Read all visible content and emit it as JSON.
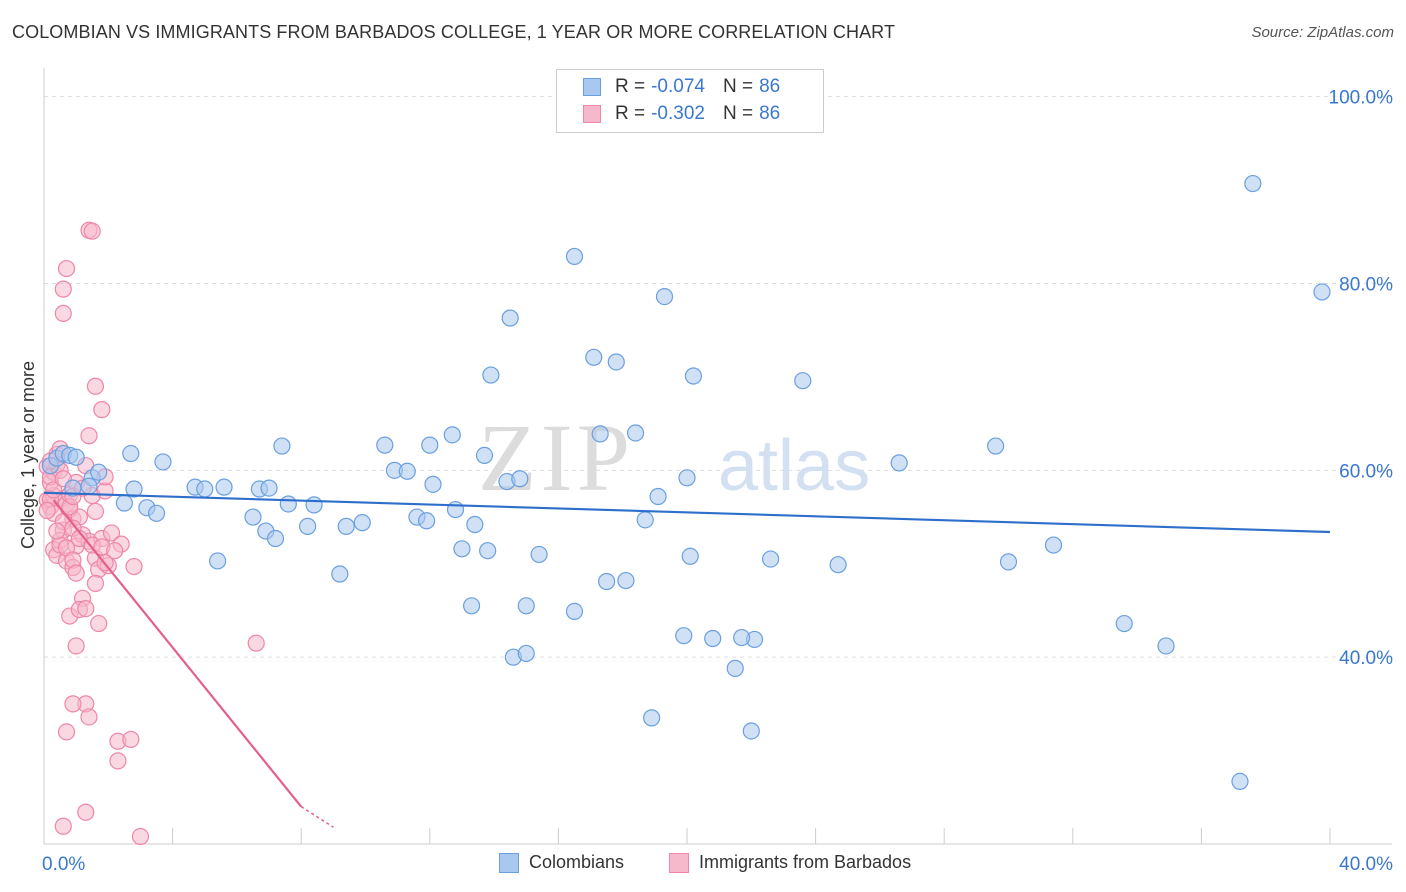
{
  "title": "COLOMBIAN VS IMMIGRANTS FROM BARBADOS COLLEGE, 1 YEAR OR MORE CORRELATION CHART",
  "source": "Source: ZipAtlas.com",
  "watermark": {
    "zip": "ZIP",
    "atlas": "atlas"
  },
  "legend": {
    "rows": [
      {
        "r_label": "R =",
        "r_value": "-0.074",
        "n_label": "N =",
        "n_value": "86"
      },
      {
        "r_label": "R =",
        "r_value": "-0.302",
        "n_label": "N =",
        "n_value": "86"
      }
    ]
  },
  "colors": {
    "blue_fill": "#a9c8ef",
    "blue_stroke": "#6a9fe0",
    "blue_line": "#2f6fcc",
    "pink_fill": "#f6b8cb",
    "pink_stroke": "#ef86a8",
    "pink_line": "#e45f8e",
    "axis_text": "#3a78d0",
    "grid": "#dddddd"
  },
  "chart_data": {
    "type": "scatter",
    "title": "COLOMBIAN VS IMMIGRANTS FROM BARBADOS COLLEGE, 1 YEAR OR MORE CORRELATION CHART",
    "xlabel": "",
    "ylabel": "College, 1 year or more",
    "xlim": [
      0,
      40
    ],
    "ylim": [
      20,
      102
    ],
    "x_tick_labels": [
      "0.0%",
      "40.0%"
    ],
    "y_tick_values": [
      40,
      60,
      80,
      100
    ],
    "y_tick_labels": [
      "40.0%",
      "60.0%",
      "80.0%",
      "100.0%"
    ],
    "series": [
      {
        "name": "Colombians",
        "r": -0.074,
        "n": 86,
        "trend": {
          "x0": 0,
          "y0": 57.6,
          "x1": 40,
          "y1": 53.4
        },
        "points": [
          [
            0.2,
            60.5
          ],
          [
            0.4,
            61.3
          ],
          [
            0.6,
            61.8
          ],
          [
            0.8,
            61.6
          ],
          [
            1.0,
            61.4
          ],
          [
            1.5,
            59.2
          ],
          [
            0.9,
            58.1
          ],
          [
            1.4,
            58.3
          ],
          [
            1.7,
            59.8
          ],
          [
            2.7,
            61.8
          ],
          [
            2.8,
            58.0
          ],
          [
            3.7,
            60.9
          ],
          [
            2.5,
            56.5
          ],
          [
            3.2,
            56.0
          ],
          [
            3.5,
            55.4
          ],
          [
            4.7,
            58.2
          ],
          [
            5.0,
            58.0
          ],
          [
            5.6,
            58.2
          ],
          [
            6.7,
            58.0
          ],
          [
            7.0,
            58.1
          ],
          [
            7.4,
            62.6
          ],
          [
            7.6,
            56.4
          ],
          [
            8.4,
            56.3
          ],
          [
            6.5,
            55.0
          ],
          [
            6.9,
            53.5
          ],
          [
            7.2,
            52.7
          ],
          [
            8.2,
            54.0
          ],
          [
            9.4,
            54.0
          ],
          [
            9.9,
            54.4
          ],
          [
            10.9,
            60.0
          ],
          [
            11.3,
            59.9
          ],
          [
            12.1,
            58.5
          ],
          [
            10.6,
            62.7
          ],
          [
            12.0,
            62.7
          ],
          [
            12.7,
            63.8
          ],
          [
            13.7,
            61.6
          ],
          [
            14.4,
            58.8
          ],
          [
            14.8,
            59.1
          ],
          [
            11.6,
            55.0
          ],
          [
            11.9,
            54.6
          ],
          [
            12.8,
            55.8
          ],
          [
            13.4,
            54.2
          ],
          [
            13.0,
            51.6
          ],
          [
            13.8,
            51.4
          ],
          [
            15.4,
            51.0
          ],
          [
            9.2,
            48.9
          ],
          [
            17.3,
            63.9
          ],
          [
            17.1,
            72.1
          ],
          [
            17.8,
            71.6
          ],
          [
            18.4,
            64.0
          ],
          [
            13.9,
            70.2
          ],
          [
            14.5,
            76.3
          ],
          [
            16.5,
            82.9
          ],
          [
            19.1,
            57.2
          ],
          [
            20.0,
            59.2
          ],
          [
            20.2,
            70.1
          ],
          [
            18.7,
            54.7
          ],
          [
            20.1,
            50.8
          ],
          [
            17.5,
            48.1
          ],
          [
            15.0,
            45.5
          ],
          [
            16.5,
            44.9
          ],
          [
            14.6,
            40.0
          ],
          [
            15.0,
            40.4
          ],
          [
            19.9,
            42.3
          ],
          [
            20.8,
            42.0
          ],
          [
            22.1,
            41.9
          ],
          [
            21.5,
            38.8
          ],
          [
            13.3,
            45.5
          ],
          [
            18.1,
            48.2
          ],
          [
            22.6,
            50.5
          ],
          [
            21.7,
            42.1
          ],
          [
            23.6,
            69.6
          ],
          [
            22.0,
            32.1
          ],
          [
            18.9,
            33.5
          ],
          [
            19.3,
            78.6
          ],
          [
            26.6,
            60.8
          ],
          [
            29.6,
            62.6
          ],
          [
            30.0,
            50.2
          ],
          [
            24.7,
            49.9
          ],
          [
            31.4,
            52.0
          ],
          [
            33.6,
            43.6
          ],
          [
            34.9,
            41.2
          ],
          [
            37.2,
            26.7
          ],
          [
            37.6,
            90.7
          ],
          [
            41.9,
            79.1
          ],
          [
            5.4,
            50.3
          ]
        ]
      },
      {
        "name": "Immigrants from Barbados",
        "r": -0.302,
        "n": 86,
        "trend": {
          "x0": 0.3,
          "y0": 56.8,
          "x1": 8.0,
          "y1": 24.0,
          "dash_to_x": 9.0,
          "dash_to_y": 21.8
        },
        "points": [
          [
            0.1,
            56.8
          ],
          [
            0.2,
            56.1
          ],
          [
            0.3,
            57.3
          ],
          [
            0.2,
            58.7
          ],
          [
            0.3,
            59.8
          ],
          [
            0.1,
            60.4
          ],
          [
            0.4,
            61.7
          ],
          [
            0.5,
            62.3
          ],
          [
            0.6,
            57.0
          ],
          [
            0.7,
            56.4
          ],
          [
            0.8,
            55.8
          ],
          [
            0.9,
            54.8
          ],
          [
            0.6,
            53.6
          ],
          [
            0.5,
            52.5
          ],
          [
            0.3,
            51.5
          ],
          [
            0.4,
            50.9
          ],
          [
            0.7,
            50.3
          ],
          [
            0.9,
            49.6
          ],
          [
            1.0,
            51.9
          ],
          [
            1.2,
            53.1
          ],
          [
            1.1,
            55.0
          ],
          [
            0.8,
            57.4
          ],
          [
            1.0,
            58.7
          ],
          [
            1.3,
            60.5
          ],
          [
            1.5,
            57.3
          ],
          [
            1.6,
            55.6
          ],
          [
            1.4,
            52.4
          ],
          [
            1.8,
            52.7
          ],
          [
            1.6,
            50.6
          ],
          [
            1.7,
            49.4
          ],
          [
            1.2,
            46.3
          ],
          [
            0.8,
            44.4
          ],
          [
            1.0,
            41.2
          ],
          [
            1.3,
            35.0
          ],
          [
            0.9,
            35.0
          ],
          [
            1.4,
            33.6
          ],
          [
            1.7,
            43.6
          ],
          [
            2.0,
            49.8
          ],
          [
            2.1,
            53.3
          ],
          [
            1.9,
            57.8
          ],
          [
            2.4,
            52.1
          ],
          [
            1.9,
            59.3
          ],
          [
            1.4,
            63.7
          ],
          [
            1.8,
            66.5
          ],
          [
            1.6,
            69.0
          ],
          [
            0.6,
            76.8
          ],
          [
            0.6,
            79.4
          ],
          [
            0.7,
            81.6
          ],
          [
            1.4,
            85.7
          ],
          [
            1.5,
            85.6
          ],
          [
            0.7,
            32.0
          ],
          [
            2.3,
            31.0
          ],
          [
            2.3,
            28.9
          ],
          [
            1.3,
            23.4
          ],
          [
            0.6,
            21.9
          ],
          [
            3.0,
            20.8
          ],
          [
            2.8,
            49.7
          ],
          [
            0.2,
            56.9
          ],
          [
            0.3,
            55.4
          ],
          [
            0.6,
            54.5
          ],
          [
            0.9,
            53.8
          ],
          [
            1.1,
            52.7
          ],
          [
            0.5,
            52.0
          ],
          [
            0.2,
            59.3
          ],
          [
            0.4,
            60.6
          ],
          [
            0.8,
            56.1
          ],
          [
            0.9,
            57.2
          ],
          [
            1.2,
            58.1
          ],
          [
            0.3,
            57.9
          ],
          [
            0.1,
            55.7
          ],
          [
            0.4,
            53.5
          ],
          [
            0.7,
            51.7
          ],
          [
            0.9,
            50.4
          ],
          [
            1.5,
            52.0
          ],
          [
            1.8,
            51.8
          ],
          [
            2.2,
            51.4
          ],
          [
            1.6,
            47.9
          ],
          [
            1.1,
            45.1
          ],
          [
            1.3,
            45.2
          ],
          [
            6.6,
            41.5
          ],
          [
            2.7,
            31.2
          ],
          [
            0.5,
            60.0
          ],
          [
            0.6,
            59.1
          ],
          [
            0.2,
            61.0
          ],
          [
            1.0,
            49.0
          ],
          [
            1.9,
            50.1
          ]
        ]
      }
    ]
  },
  "bottom_legend": {
    "items": [
      "Colombians",
      "Immigrants from Barbados"
    ]
  }
}
